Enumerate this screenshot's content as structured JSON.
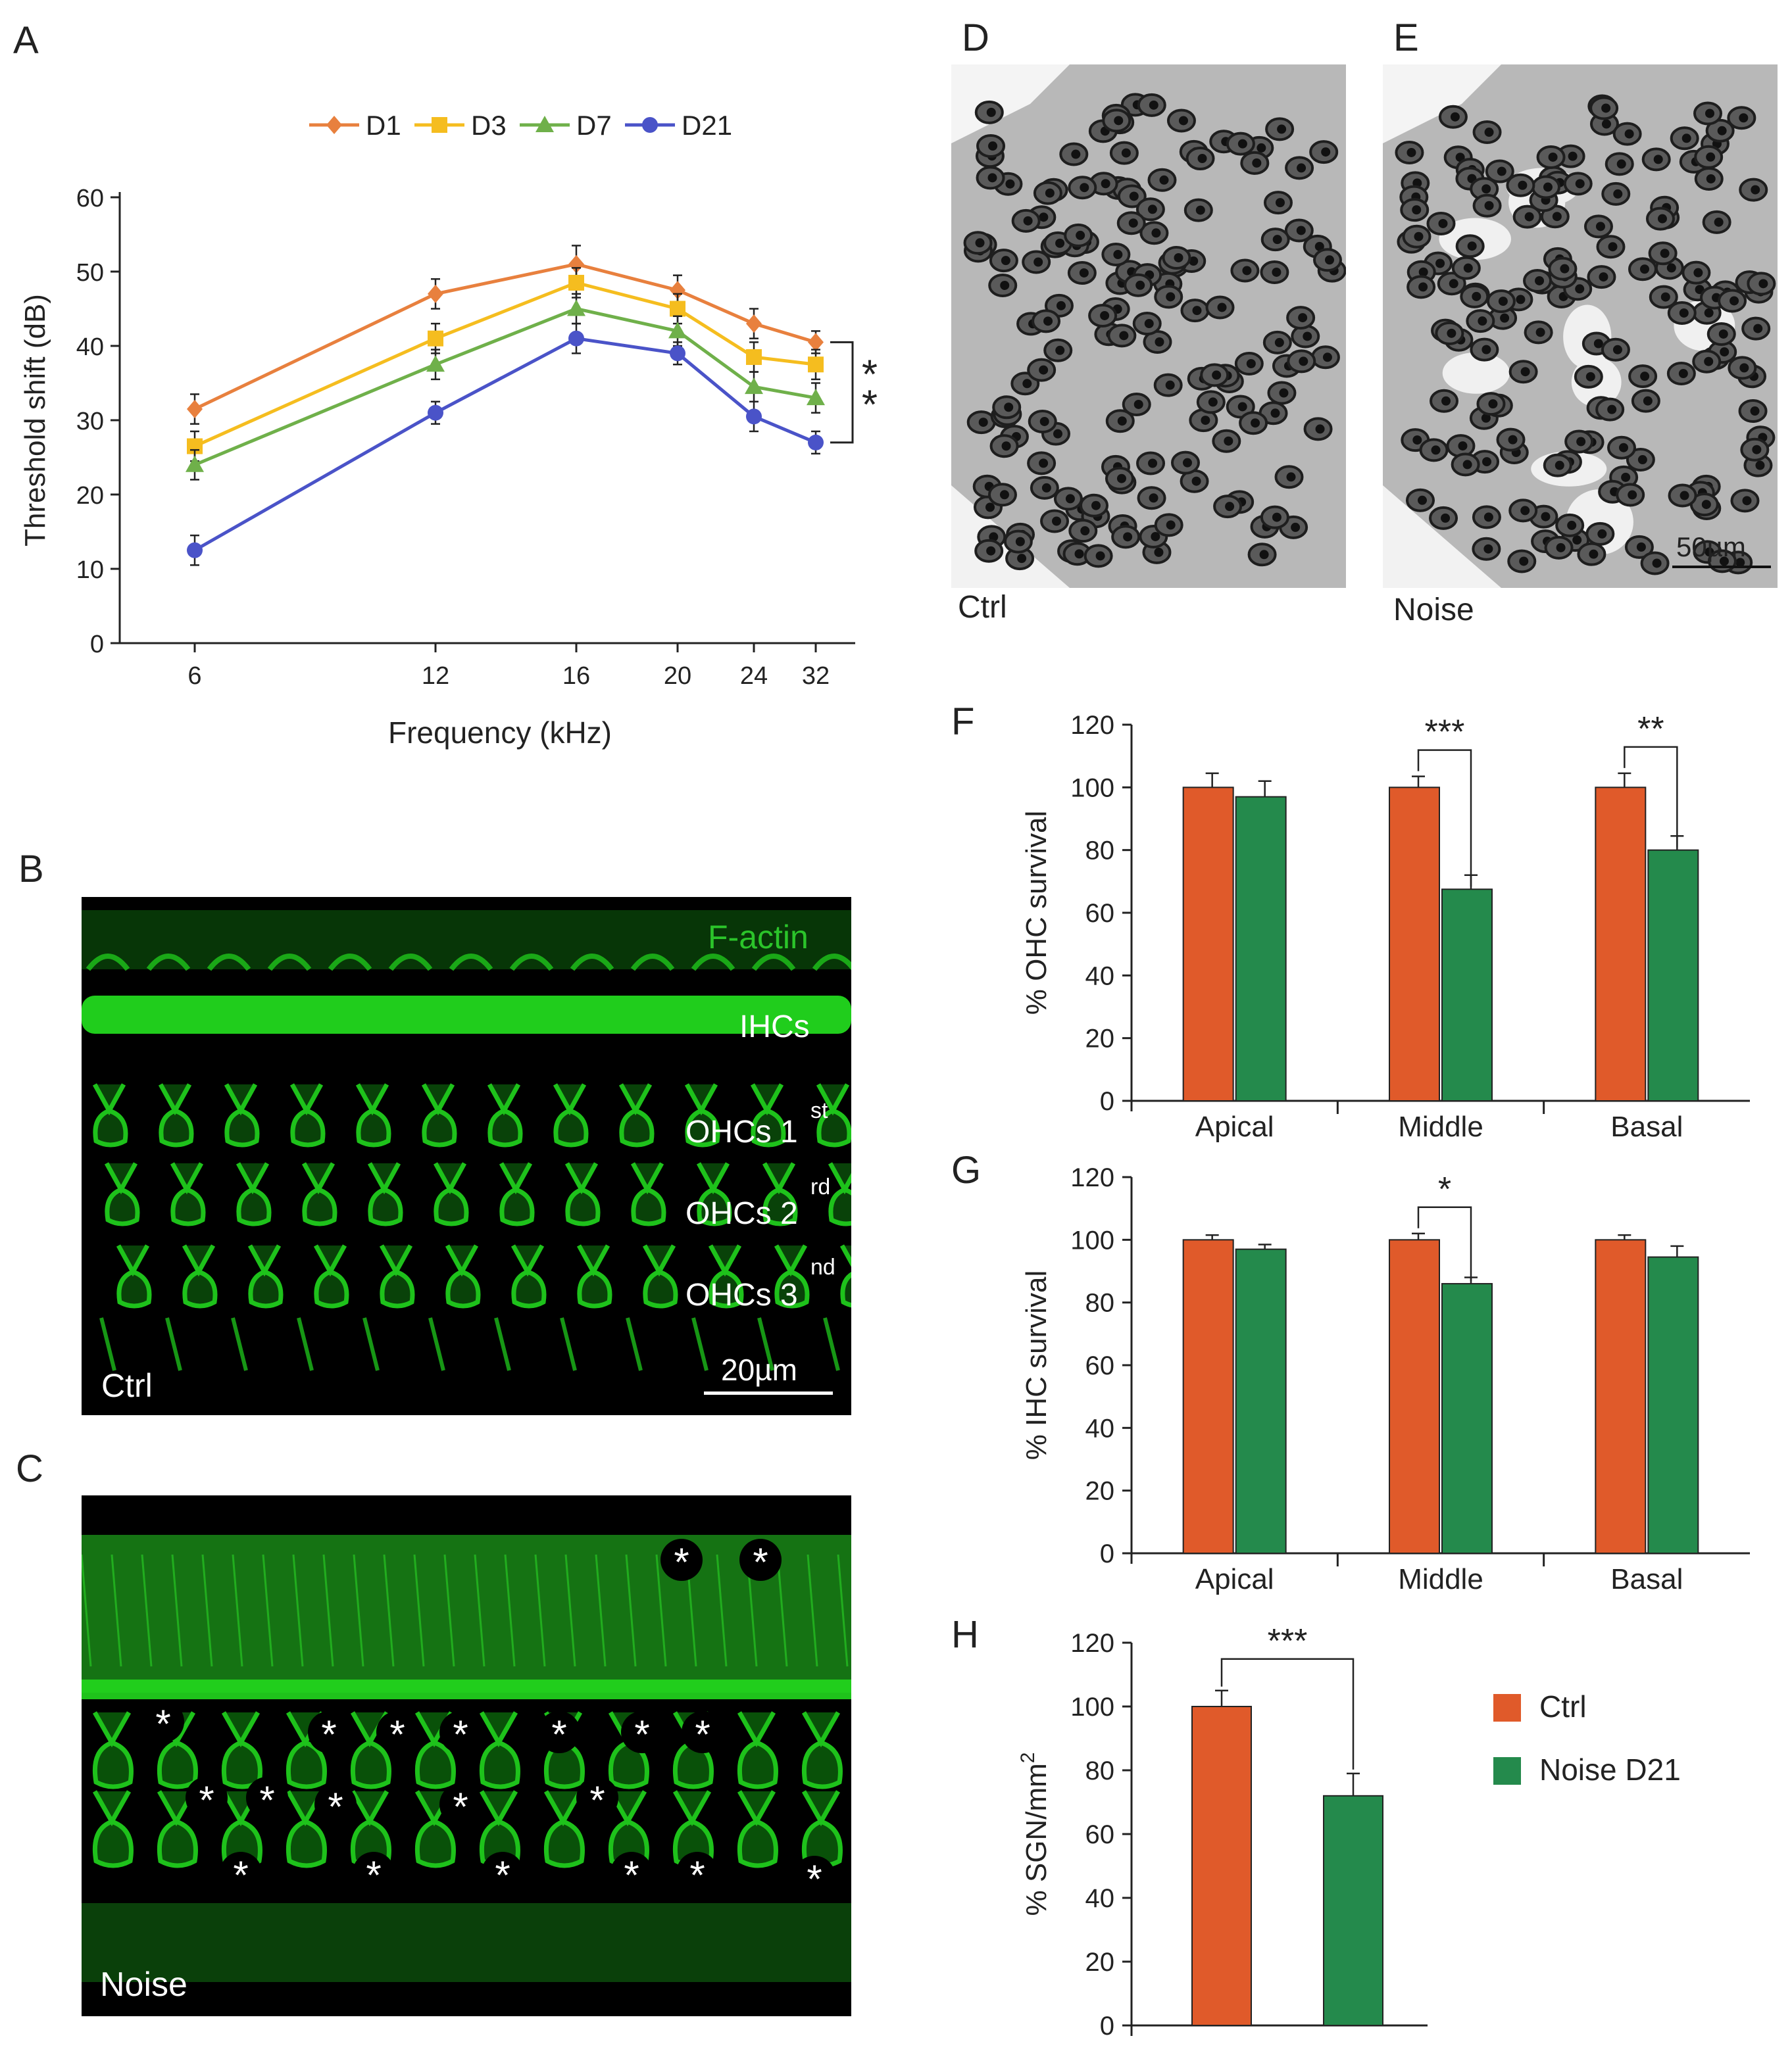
{
  "panels": {
    "A": "A",
    "B": "B",
    "C": "C",
    "D": "D",
    "E": "E",
    "F": "F",
    "G": "G",
    "H": "H"
  },
  "micrographs": {
    "B": {
      "stain": "F-actin",
      "rows": [
        "IHCs",
        "OHCs 1",
        "OHCs 2",
        "OHCs 3"
      ],
      "row_sups": [
        "st",
        "rd",
        "nd"
      ],
      "condition": "Ctrl",
      "scale": "20µm"
    },
    "C": {
      "condition": "Noise",
      "marker": "*"
    },
    "D": {
      "condition": "Ctrl"
    },
    "E": {
      "condition": "Noise",
      "scale": "50µm"
    }
  },
  "colors": {
    "D1": "#e8803e",
    "D3": "#f5bd1f",
    "D7": "#6fb04a",
    "D21": "#4a53c8",
    "ctrl": "#e05a2a",
    "noise": "#248a4c",
    "fluor": "#22d81e"
  },
  "legend_HFG": [
    "Ctrl",
    "Noise D21"
  ],
  "chart_data": [
    {
      "id": "A",
      "type": "line",
      "xlabel": "Frequency (kHz)",
      "ylabel": "Threshold shift (dB)",
      "x": [
        6,
        12,
        16,
        20,
        24,
        32
      ],
      "x_ticks": [
        "6",
        "12",
        "16",
        "20",
        "24",
        "32"
      ],
      "ylim": [
        0,
        60
      ],
      "y_ticks": [
        "0",
        "10",
        "20",
        "30",
        "40",
        "50",
        "60"
      ],
      "series": [
        {
          "name": "D1",
          "values": [
            31.5,
            47,
            51,
            47.5,
            43,
            40.5
          ],
          "errors": [
            2,
            2,
            2.5,
            2,
            2,
            1.5
          ]
        },
        {
          "name": "D3",
          "values": [
            26.5,
            41,
            48.5,
            45,
            38.5,
            37.5
          ],
          "errors": [
            2,
            2,
            2,
            2,
            2,
            2
          ]
        },
        {
          "name": "D7",
          "values": [
            24,
            37.5,
            45,
            42,
            34.5,
            33
          ],
          "errors": [
            2,
            2,
            2,
            2,
            2,
            2
          ]
        },
        {
          "name": "D21",
          "values": [
            12.5,
            31,
            41,
            39,
            30.5,
            27
          ],
          "errors": [
            2,
            1.5,
            2,
            1.5,
            2,
            1.5
          ]
        }
      ],
      "significance": "* *",
      "legend": "top"
    },
    {
      "id": "F",
      "type": "bar",
      "ylabel": "% OHC survival",
      "categories": [
        "Apical",
        "Middle",
        "Basal"
      ],
      "ylim": [
        0,
        120
      ],
      "y_ticks": [
        "0",
        "20",
        "40",
        "60",
        "80",
        "100",
        "120"
      ],
      "series": [
        {
          "name": "Ctrl",
          "values": [
            100,
            100,
            100
          ],
          "errors": [
            4.5,
            3.5,
            4.5
          ]
        },
        {
          "name": "Noise D21",
          "values": [
            97,
            67.5,
            80
          ],
          "errors": [
            5,
            4.5,
            4.5
          ]
        }
      ],
      "significance": [
        "",
        "***",
        "**"
      ]
    },
    {
      "id": "G",
      "type": "bar",
      "ylabel": "% IHC survival",
      "categories": [
        "Apical",
        "Middle",
        "Basal"
      ],
      "ylim": [
        0,
        120
      ],
      "y_ticks": [
        "0",
        "20",
        "40",
        "60",
        "80",
        "100",
        "120"
      ],
      "series": [
        {
          "name": "Ctrl",
          "values": [
            100,
            100,
            100
          ],
          "errors": [
            1.5,
            2,
            1.5
          ]
        },
        {
          "name": "Noise D21",
          "values": [
            97,
            86,
            94.5
          ],
          "errors": [
            1.5,
            2,
            3.5
          ]
        }
      ],
      "significance": [
        "",
        "*",
        ""
      ]
    },
    {
      "id": "H",
      "type": "bar",
      "ylabel": "% SGN/mm",
      "ylabel_sup": "2",
      "categories": [
        "Ctrl",
        "Noise D21"
      ],
      "ylim": [
        0,
        120
      ],
      "y_ticks": [
        "0",
        "20",
        "40",
        "60",
        "80",
        "100",
        "120"
      ],
      "values": [
        100,
        72
      ],
      "errors": [
        5,
        7
      ],
      "significance": "***"
    }
  ]
}
